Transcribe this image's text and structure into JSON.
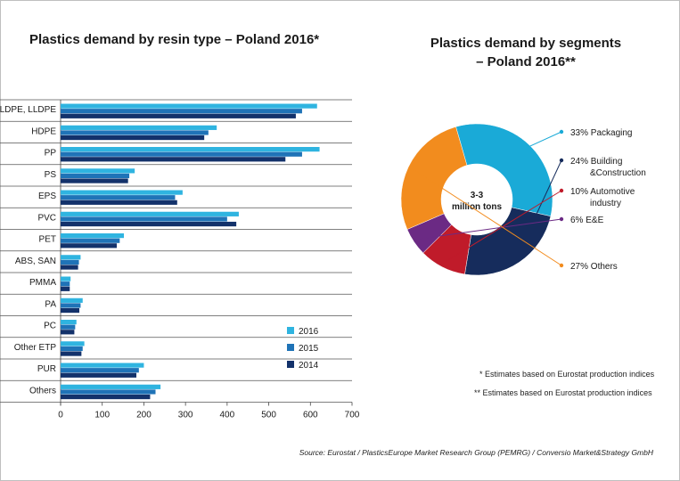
{
  "chart_data": [
    {
      "type": "bar",
      "orientation": "horizontal",
      "title": "Plastics demand by resin type – Poland 2016*",
      "categories": [
        "LDPE, LLDPE",
        "HDPE",
        "PP",
        "PS",
        "EPS",
        "PVC",
        "PET",
        "ABS, SAN",
        "PMMA",
        "PA",
        "PC",
        "Other ETP",
        "PUR",
        "Others"
      ],
      "series": [
        {
          "name": "2016",
          "color": "#2fb4e0",
          "values": [
            616,
            375,
            622,
            178,
            293,
            428,
            152,
            48,
            24,
            53,
            38,
            57,
            200,
            240
          ]
        },
        {
          "name": "2015",
          "color": "#1f73b7",
          "values": [
            580,
            355,
            580,
            165,
            275,
            400,
            142,
            44,
            22,
            48,
            35,
            53,
            188,
            228
          ]
        },
        {
          "name": "2014",
          "color": "#13326b",
          "values": [
            565,
            345,
            540,
            162,
            280,
            422,
            135,
            42,
            22,
            45,
            33,
            50,
            182,
            215
          ]
        }
      ],
      "xticks": [
        "0",
        "100",
        "200",
        "300",
        "400",
        "500",
        "600",
        "700"
      ],
      "xlim": [
        0,
        700
      ],
      "legend_position": "bottom-right"
    },
    {
      "type": "pie",
      "style": "donut",
      "title_lines": [
        "Plastics demand by segments",
        "– Poland 2016**"
      ],
      "center_lines": [
        "3-3",
        "million tons"
      ],
      "slices": [
        {
          "label_lines": [
            "33% Packaging"
          ],
          "value": 33,
          "color": "#1aaad7"
        },
        {
          "label_lines": [
            "24% Building",
            "&Construction"
          ],
          "value": 24,
          "color": "#162c5c"
        },
        {
          "label_lines": [
            "10% Automotive",
            "industry"
          ],
          "value": 10,
          "color": "#c01b2a"
        },
        {
          "label_lines": [
            "6% E&E"
          ],
          "value": 6,
          "color": "#6b2a84"
        },
        {
          "label_lines": [
            "27% Others"
          ],
          "value": 27,
          "color": "#f28c1e"
        }
      ]
    }
  ],
  "footnotes": {
    "note1": "* Estimates based on  Eurostat production indices",
    "note2": "** Estimates based on  Eurostat production indices"
  },
  "source": "Source: Eurostat / PlasticsEurope Market Research Group (PEMRG) / Conversio Market&Strategy GmbH"
}
